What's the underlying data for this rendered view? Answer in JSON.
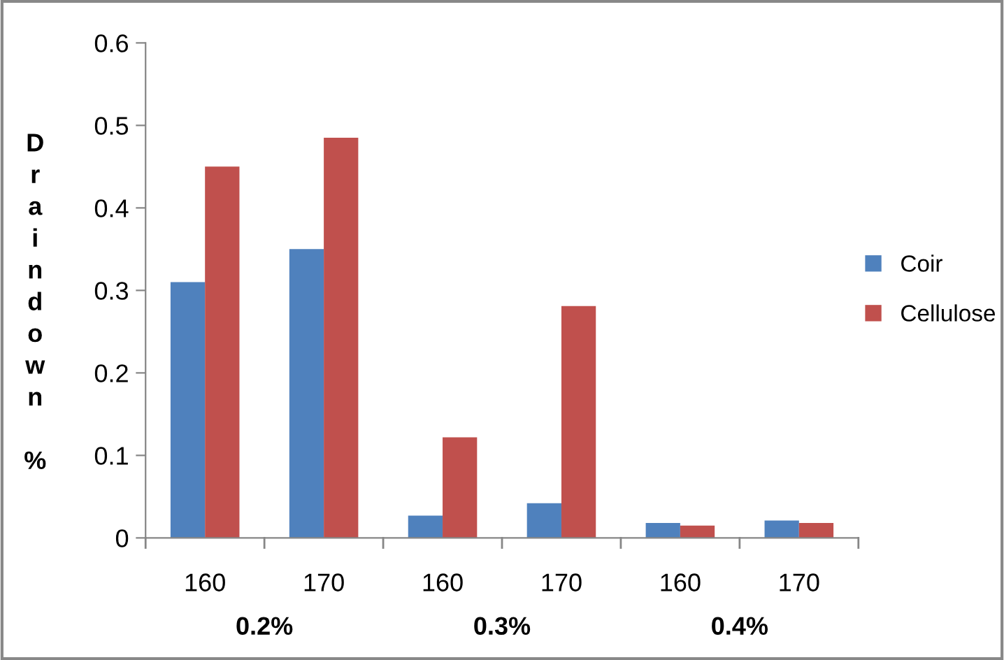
{
  "chart_data": {
    "type": "bar",
    "ylabel": "Draindown %",
    "categories": [
      "160",
      "170",
      "160",
      "170",
      "160",
      "170"
    ],
    "series": [
      {
        "name": "Coir",
        "color": "#4f81bd",
        "values": [
          0.31,
          0.35,
          0.027,
          0.042,
          0.018,
          0.021
        ]
      },
      {
        "name": "Cellulose",
        "color": "#c0504d",
        "values": [
          0.45,
          0.485,
          0.122,
          0.281,
          0.015,
          0.018
        ]
      }
    ],
    "annotations": [
      "0.2%",
      "0.3%",
      "0.4%"
    ],
    "ylim": [
      0,
      0.6
    ],
    "yticks": [
      0,
      0.1,
      0.2,
      0.3,
      0.4,
      0.5,
      0.6
    ],
    "grid": false,
    "legend": "right"
  }
}
